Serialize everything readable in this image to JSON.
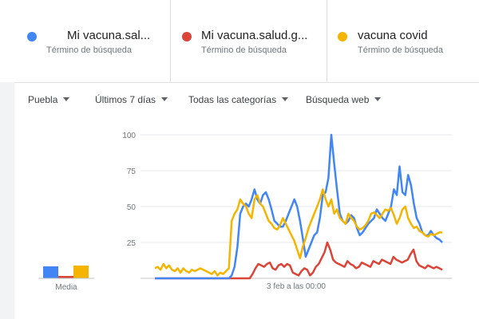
{
  "terms": [
    {
      "name": "Mi vacuna.sal...",
      "sub": "Término de búsqueda",
      "color": "#4285f4"
    },
    {
      "name": "Mi vacuna.salud.g...",
      "sub": "Término de búsqueda",
      "color": "#db4437"
    },
    {
      "name": "vacuna covid",
      "sub": "Término de búsqueda",
      "color": "#f4b400"
    }
  ],
  "filters": {
    "region": "Puebla",
    "period": "Últimos 7 días",
    "category": "Todas las categorías",
    "search_type": "Búsqueda web"
  },
  "chart_data": {
    "type": "line",
    "ylim": [
      0,
      100
    ],
    "yticks": [
      "25",
      "50",
      "75",
      "100"
    ],
    "x_label": "3 feb a las 00:00",
    "average_label": "Media",
    "averages": [
      15,
      3,
      16
    ],
    "grid": true,
    "series": [
      {
        "name": "Mi vacuna.sal...",
        "color": "#4285f4",
        "values": [
          0,
          0,
          0,
          0,
          0,
          0,
          0,
          0,
          0,
          0,
          0,
          0,
          0,
          0,
          0,
          0,
          0,
          0,
          0,
          0,
          0,
          0,
          0,
          0,
          0,
          0,
          0,
          2,
          8,
          22,
          45,
          50,
          52,
          50,
          55,
          62,
          55,
          52,
          58,
          60,
          55,
          48,
          40,
          38,
          36,
          36,
          40,
          45,
          50,
          55,
          50,
          40,
          28,
          15,
          20,
          25,
          30,
          32,
          42,
          58,
          60,
          70,
          100,
          80,
          62,
          45,
          40,
          38,
          40,
          44,
          42,
          35,
          30,
          32,
          35,
          38,
          40,
          42,
          48,
          45,
          42,
          40,
          45,
          50,
          62,
          58,
          78,
          60,
          58,
          72,
          65,
          52,
          42,
          38,
          32,
          30,
          30,
          33,
          30,
          28,
          27,
          25
        ]
      },
      {
        "name": "Mi vacuna.salud.g...",
        "color": "#db4437",
        "values": [
          0,
          0,
          0,
          0,
          0,
          0,
          0,
          0,
          0,
          0,
          0,
          0,
          0,
          0,
          0,
          0,
          0,
          0,
          0,
          0,
          0,
          0,
          0,
          0,
          0,
          0,
          0,
          0,
          0,
          0,
          0,
          0,
          0,
          0,
          3,
          7,
          10,
          9,
          8,
          10,
          11,
          7,
          6,
          9,
          10,
          8,
          10,
          9,
          4,
          3,
          2,
          5,
          7,
          6,
          2,
          4,
          8,
          10,
          14,
          18,
          25,
          20,
          13,
          11,
          10,
          9,
          8,
          12,
          10,
          9,
          7,
          8,
          11,
          10,
          9,
          8,
          12,
          11,
          10,
          13,
          12,
          11,
          10,
          15,
          13,
          12,
          11,
          12,
          13,
          17,
          20,
          12,
          9,
          8,
          7,
          9,
          8,
          7,
          8,
          7,
          6
        ]
      },
      {
        "name": "vacuna covid",
        "color": "#f4b400",
        "values": [
          7,
          8,
          6,
          10,
          7,
          9,
          6,
          5,
          7,
          4,
          7,
          5,
          4,
          6,
          5,
          6,
          7,
          6,
          5,
          4,
          3,
          5,
          2,
          4,
          3,
          5,
          7,
          40,
          45,
          48,
          55,
          52,
          50,
          45,
          42,
          55,
          58,
          52,
          50,
          45,
          40,
          38,
          35,
          34,
          37,
          42,
          38,
          34,
          30,
          26,
          20,
          14,
          22,
          28,
          35,
          40,
          45,
          50,
          55,
          62,
          55,
          50,
          55,
          45,
          48,
          42,
          40,
          38,
          45,
          42,
          40,
          36,
          34,
          35,
          37,
          40,
          45,
          46,
          44,
          42,
          45,
          48,
          47,
          49,
          44,
          38,
          42,
          48,
          50,
          42,
          38,
          35,
          36,
          33,
          32,
          30,
          29,
          31,
          30,
          31,
          32,
          32
        ]
      }
    ]
  }
}
